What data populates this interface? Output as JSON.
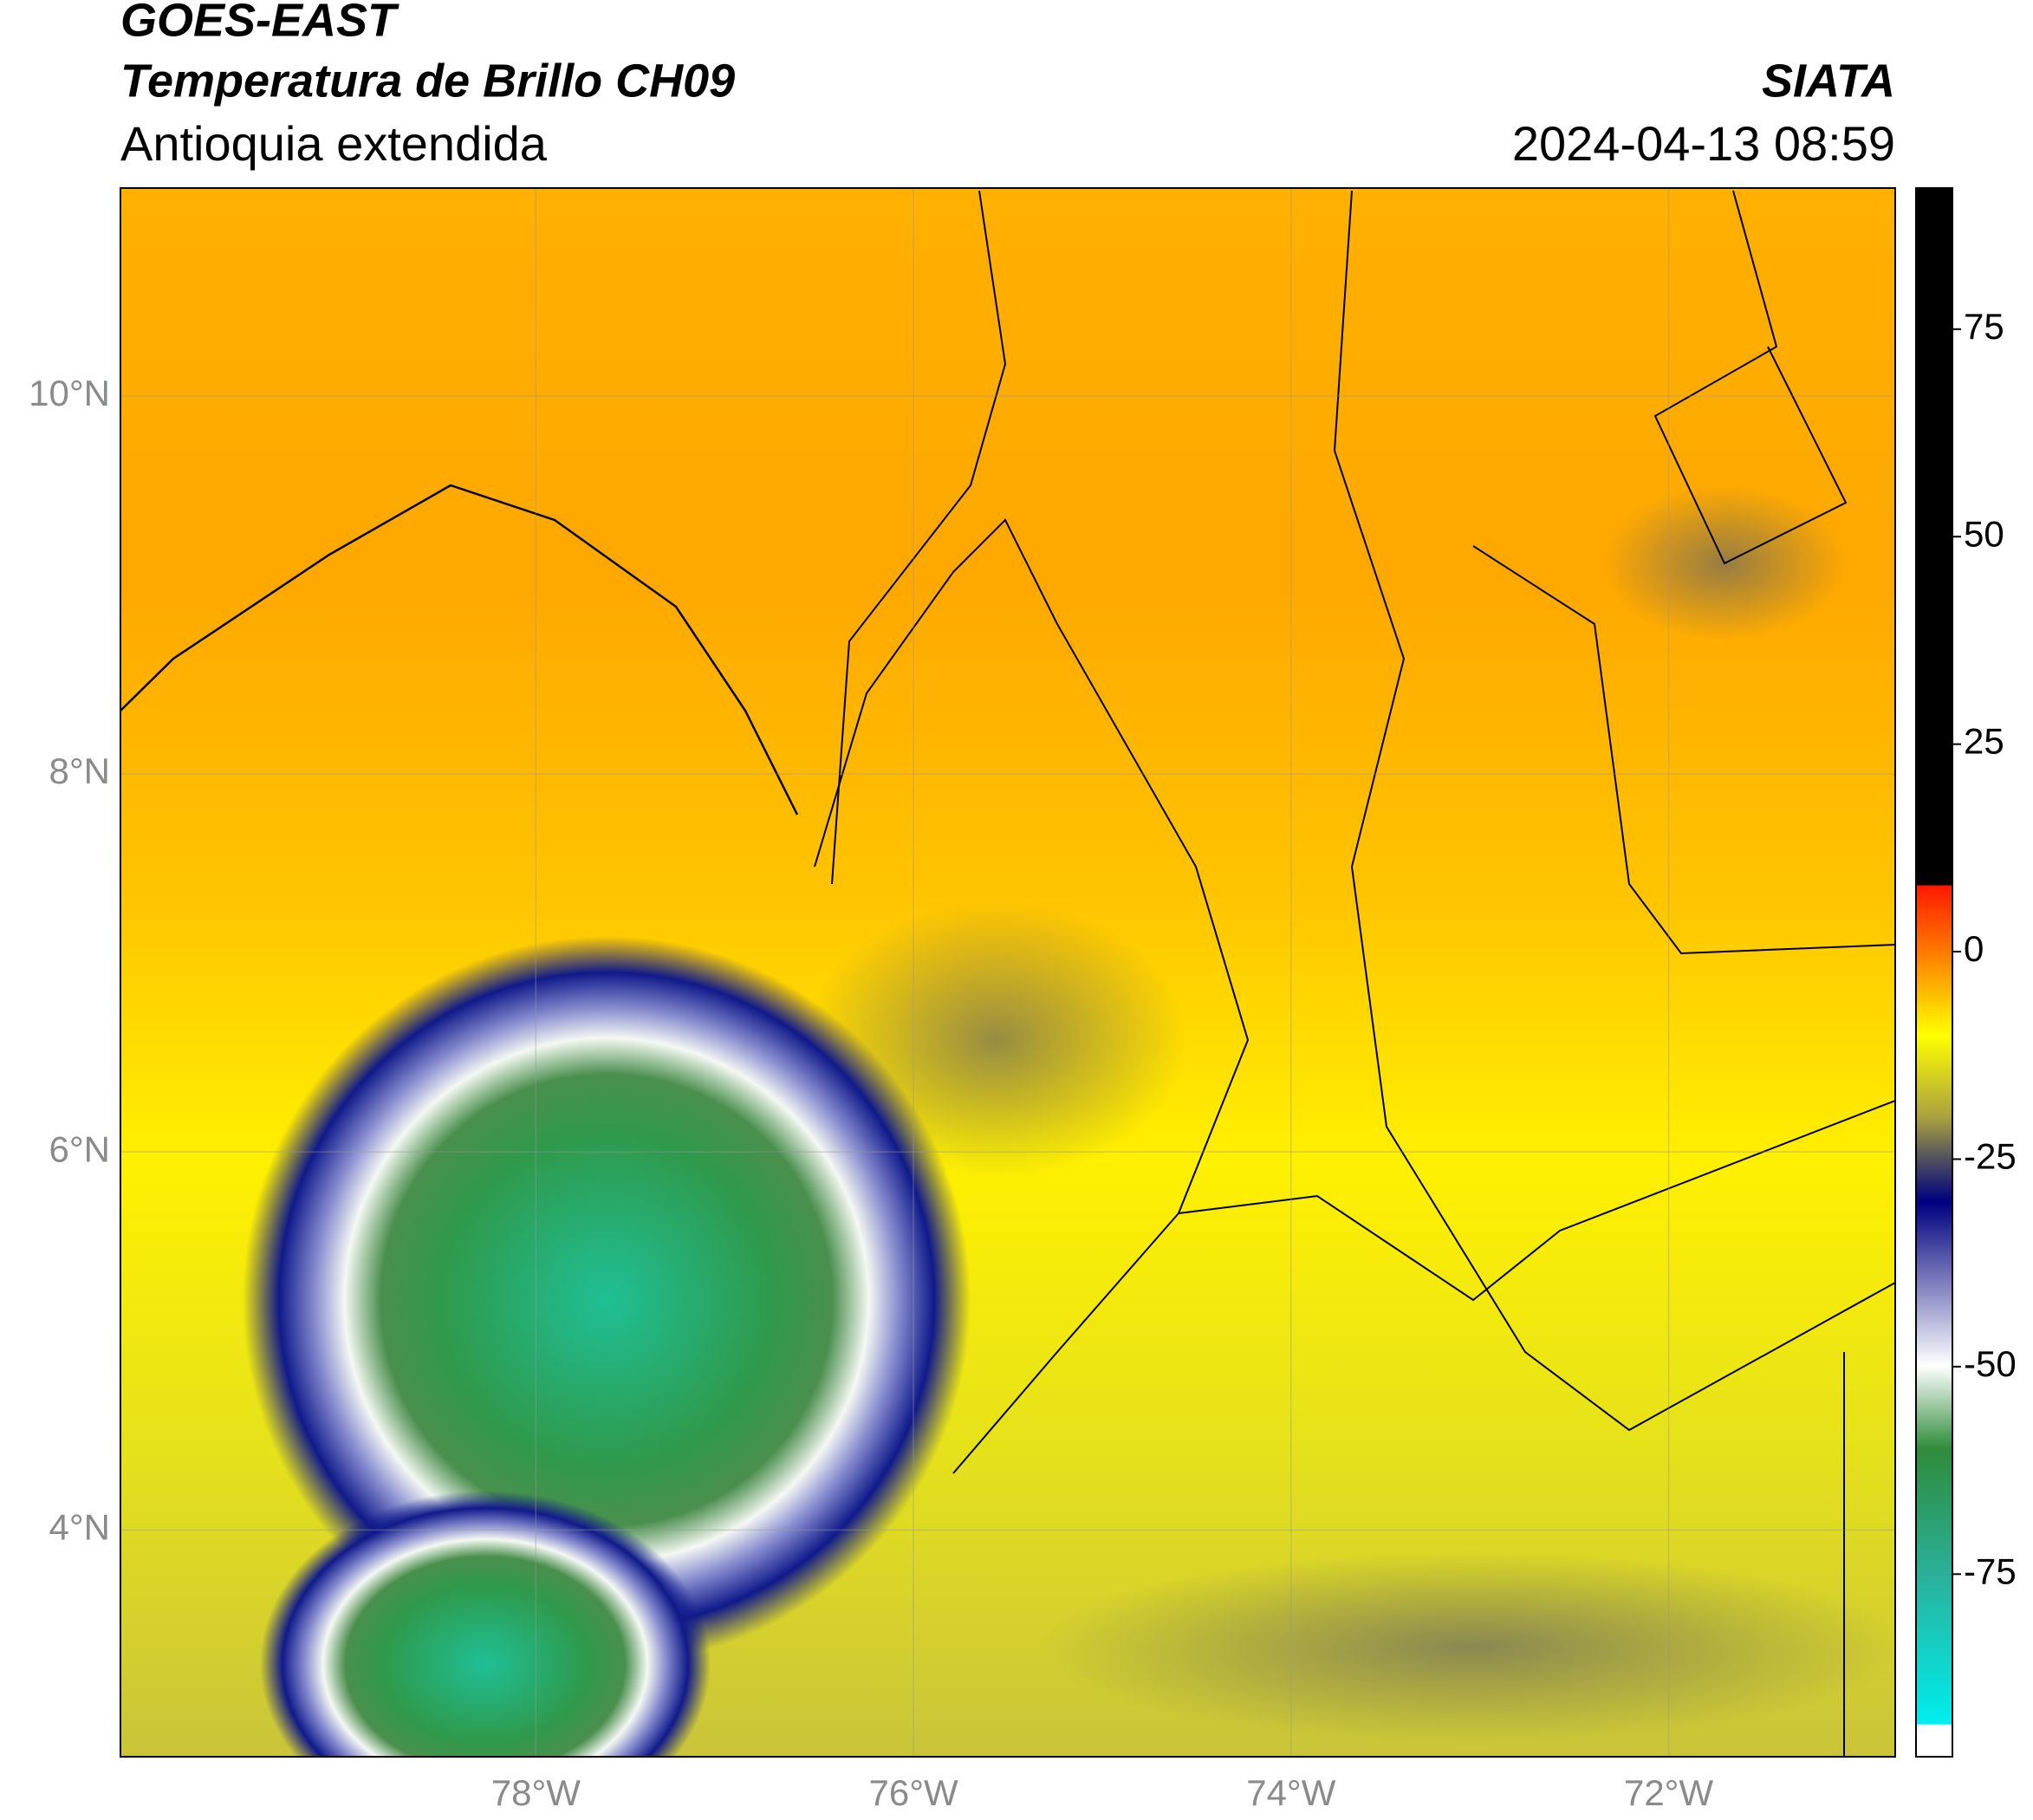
{
  "header": {
    "source": "GOES-EAST",
    "title": "Temperatura de Brillo CH09",
    "region": "Antioquia extendida",
    "brand": "SIATA",
    "datetime": "2024-04-13 08:59"
  },
  "map": {
    "xlim": [
      -80.2,
      -70.8
    ],
    "ylim": [
      2.8,
      11.1
    ],
    "xticks": [
      {
        "value": -78,
        "label": "78°W"
      },
      {
        "value": -76,
        "label": "76°W"
      },
      {
        "value": -74,
        "label": "74°W"
      },
      {
        "value": -72,
        "label": "72°W"
      }
    ],
    "yticks": [
      {
        "value": 4,
        "label": "4°N"
      },
      {
        "value": 6,
        "label": "6°N"
      },
      {
        "value": 8,
        "label": "8°N"
      },
      {
        "value": 10,
        "label": "10°N"
      }
    ],
    "grid": true
  },
  "colorbar": {
    "lim": [
      -97,
      92
    ],
    "ticks": [
      -75,
      -50,
      -25,
      0,
      25,
      50,
      75
    ]
  }
}
